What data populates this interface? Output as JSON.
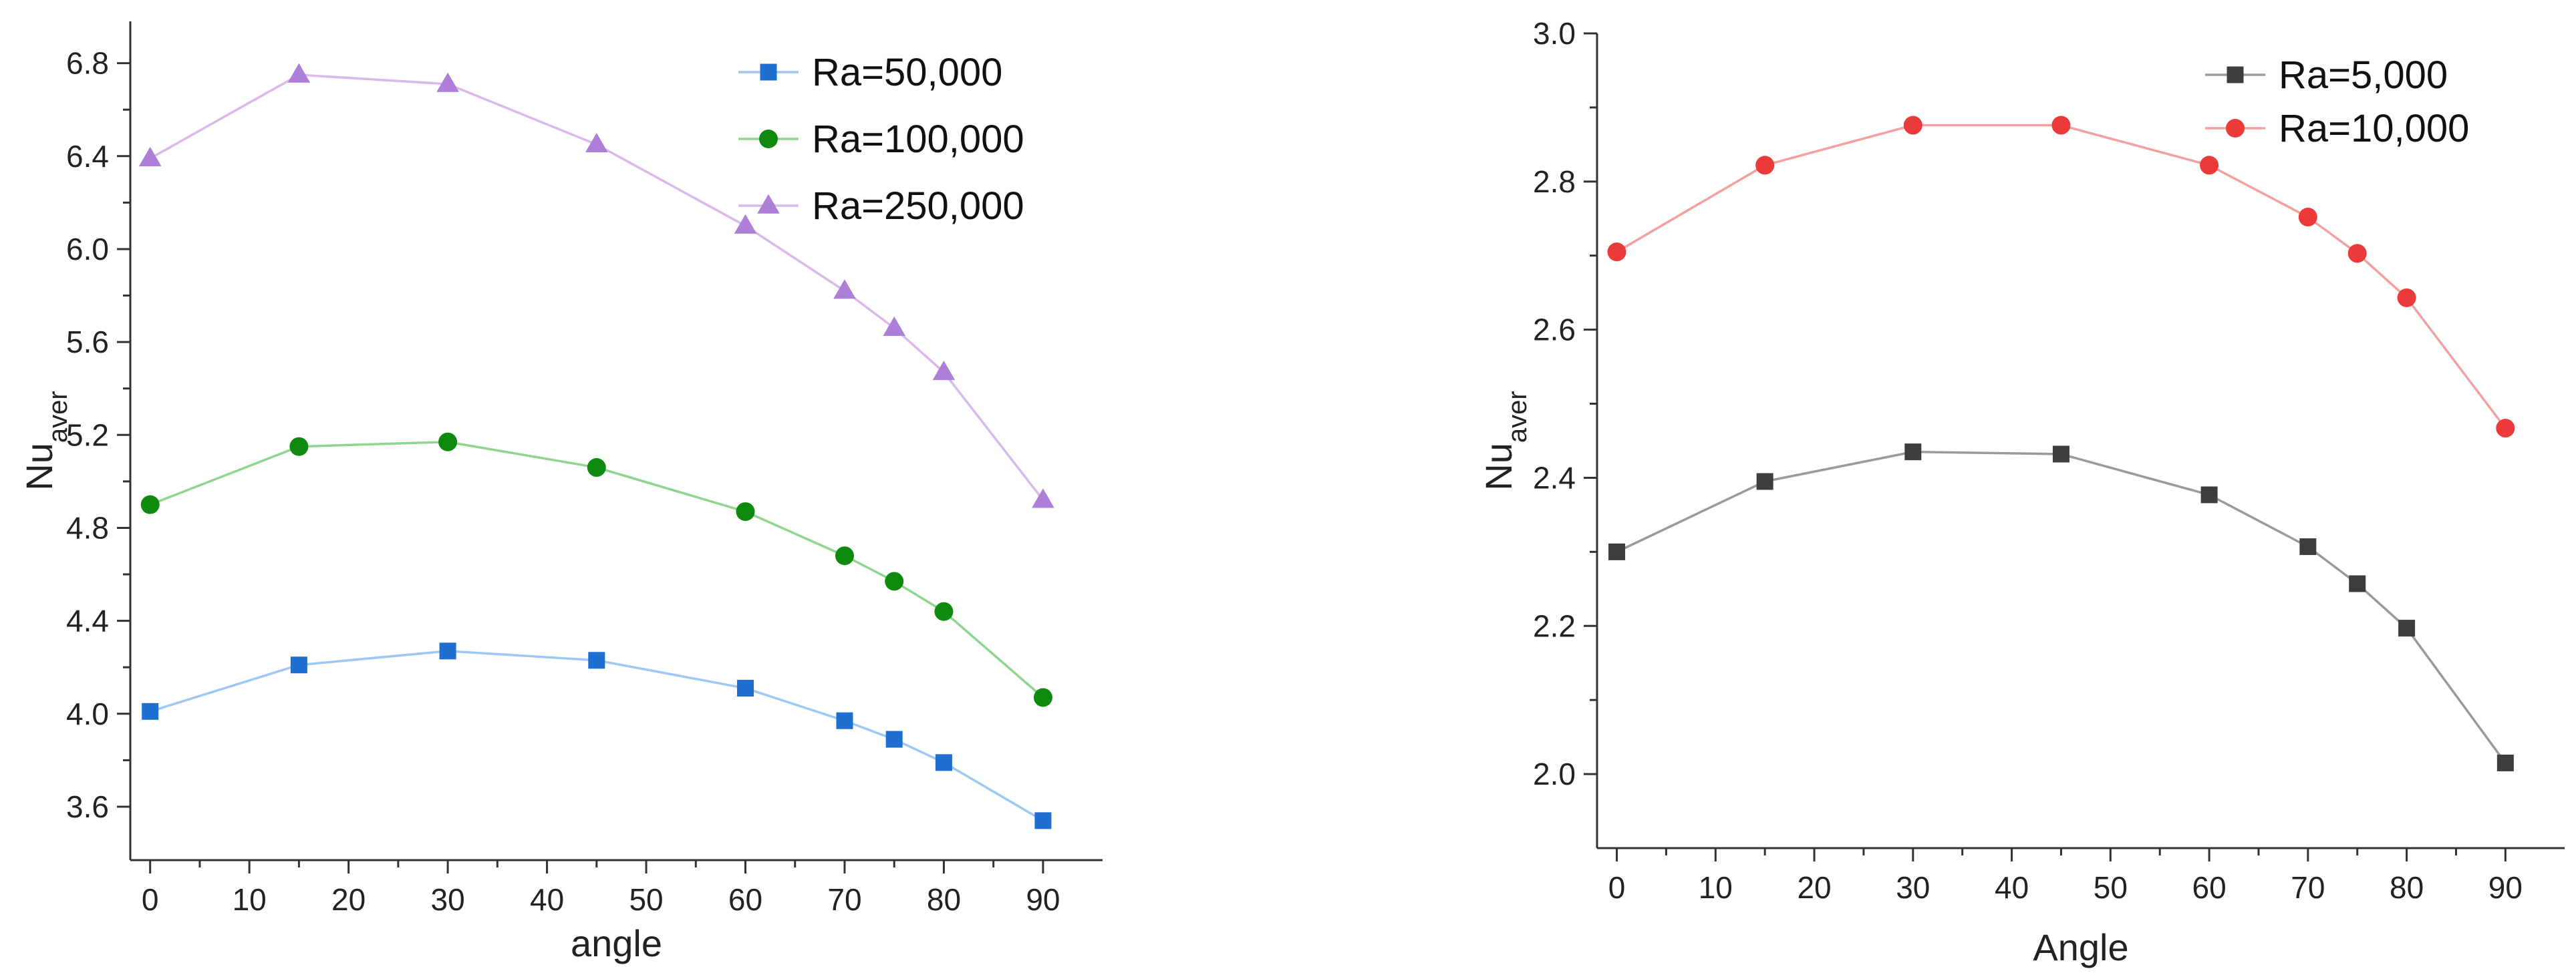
{
  "chart_data": [
    {
      "type": "line",
      "title": "",
      "xlabel": "angle",
      "ylabel": "Nu",
      "ylabel_sub": "aver",
      "xlim": [
        -2,
        96
      ],
      "ylim": [
        3.37,
        6.98
      ],
      "xticks": [
        0,
        10,
        20,
        30,
        40,
        50,
        60,
        70,
        80,
        90
      ],
      "yticks": [
        3.6,
        4.0,
        4.4,
        4.8,
        5.2,
        5.6,
        6.0,
        6.4,
        6.8
      ],
      "ytick_labels": [
        "3.6",
        "4.0",
        "4.4",
        "4.8",
        "5.2",
        "5.6",
        "6.0",
        "6.4",
        "6.8"
      ],
      "grid": false,
      "legend_position": "top-right",
      "x": [
        0,
        15,
        30,
        45,
        60,
        70,
        75,
        80,
        90
      ],
      "series": [
        {
          "name": "Ra=50,000",
          "marker": "square",
          "line_color": "#9cc8f2",
          "marker_color": "#1f6fd1",
          "values": [
            4.01,
            4.21,
            4.27,
            4.23,
            4.11,
            3.97,
            3.89,
            3.79,
            3.54
          ]
        },
        {
          "name": "Ra=100,000",
          "marker": "circle",
          "line_color": "#8fd48f",
          "marker_color": "#0e8a0e",
          "values": [
            4.9,
            5.15,
            5.17,
            5.06,
            4.87,
            4.68,
            4.57,
            4.44,
            4.07
          ]
        },
        {
          "name": "Ra=250,000",
          "marker": "triangle",
          "line_color": "#d9b8ec",
          "marker_color": "#ad7fd9",
          "values": [
            6.39,
            6.75,
            6.71,
            6.45,
            6.1,
            5.82,
            5.66,
            5.47,
            4.92
          ]
        }
      ]
    },
    {
      "type": "line",
      "title": "",
      "xlabel": "Angle",
      "ylabel": "Nu",
      "ylabel_sub": "aver",
      "xlim": [
        -2,
        96
      ],
      "ylim": [
        1.9,
        3.0
      ],
      "xticks": [
        0,
        10,
        20,
        30,
        40,
        50,
        60,
        70,
        80,
        90
      ],
      "yticks": [
        2.0,
        2.2,
        2.4,
        2.6,
        2.8,
        3.0
      ],
      "ytick_labels": [
        "2.0",
        "2.2",
        "2.4",
        "2.6",
        "2.8",
        "3.0"
      ],
      "grid": false,
      "legend_position": "top-right",
      "x": [
        0,
        15,
        30,
        45,
        60,
        70,
        75,
        80,
        90
      ],
      "series": [
        {
          "name": "Ra=5,000",
          "marker": "square",
          "line_color": "#9a9a9a",
          "marker_color": "#3d3d3d",
          "values": [
            2.3,
            2.395,
            2.435,
            2.432,
            2.377,
            2.307,
            2.257,
            2.197,
            2.015
          ]
        },
        {
          "name": "Ra=10,000",
          "marker": "circle",
          "line_color": "#f2a0a0",
          "marker_color": "#ea3a3a",
          "values": [
            2.705,
            2.822,
            2.876,
            2.876,
            2.822,
            2.752,
            2.703,
            2.643,
            2.467
          ]
        }
      ]
    }
  ]
}
